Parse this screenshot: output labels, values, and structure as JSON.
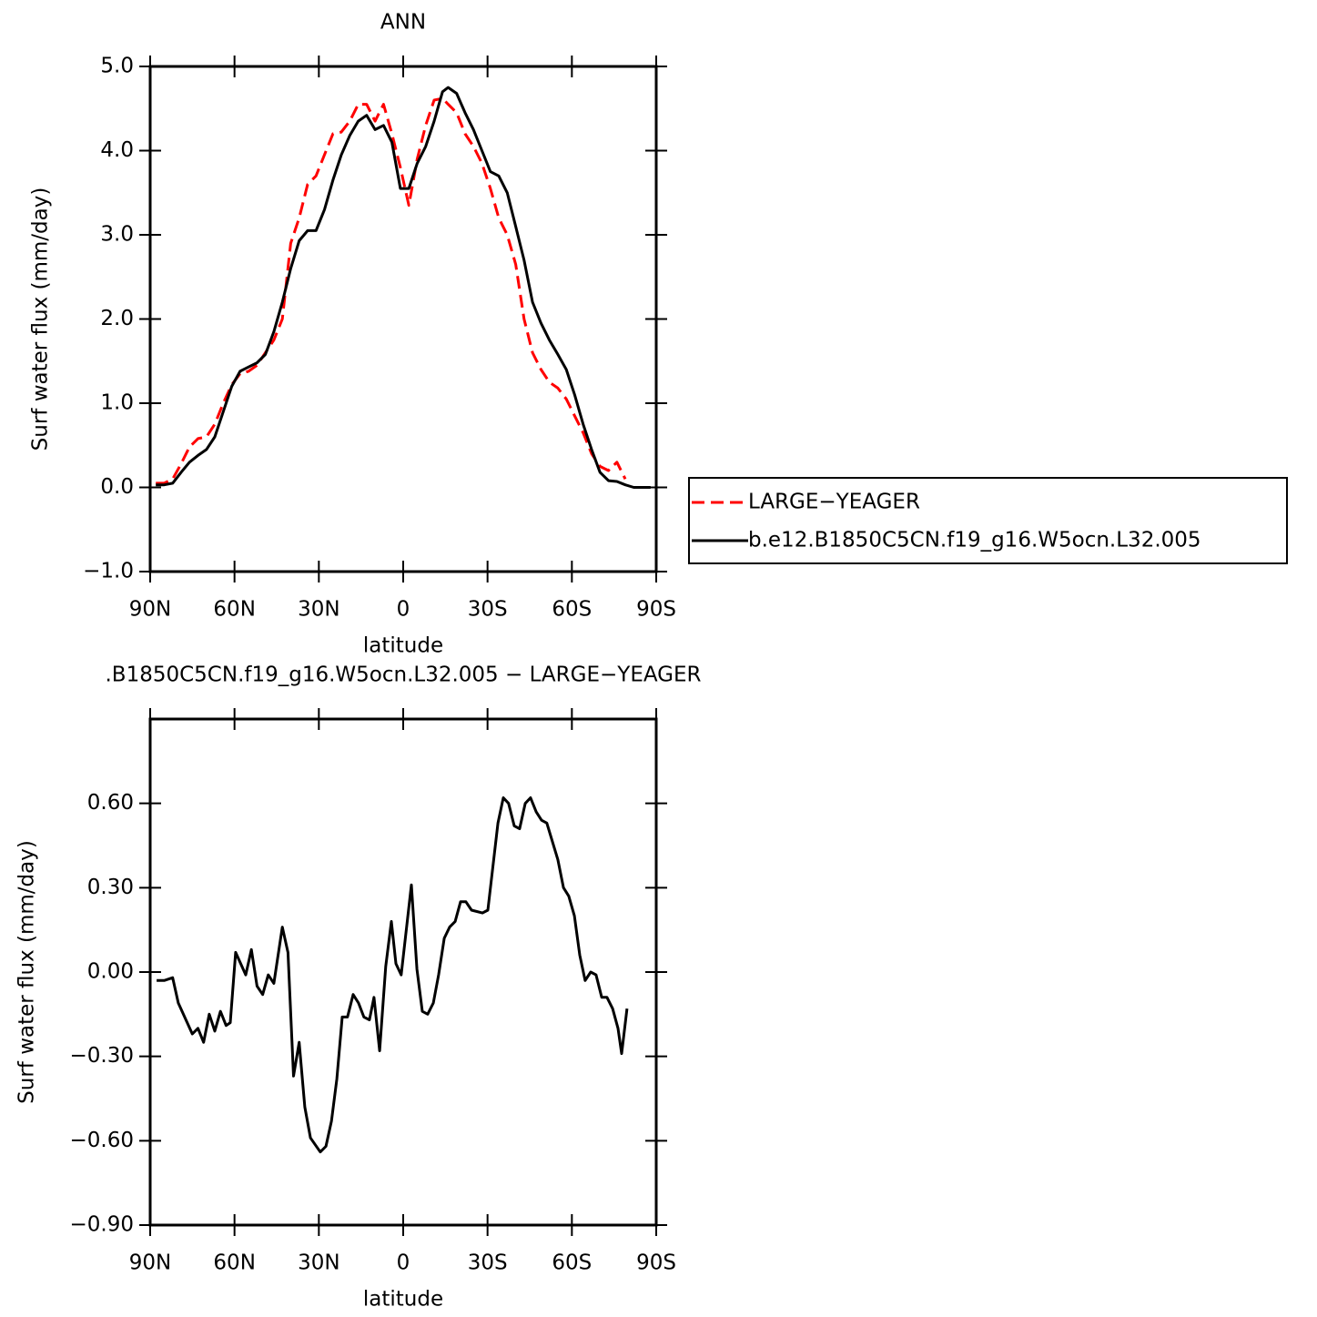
{
  "chart_data": [
    {
      "type": "line",
      "title": "ANN",
      "xlabel": "latitude",
      "ylabel": "Surf water flux (mm/day)",
      "x": [
        88,
        85,
        82,
        79,
        76,
        73,
        70,
        67,
        64,
        61,
        58,
        55,
        52,
        49,
        46,
        43,
        40,
        37,
        34,
        31,
        28,
        25,
        22,
        19,
        16,
        13,
        10,
        7,
        4,
        1,
        -2,
        -5,
        -8,
        -11,
        -14,
        -16,
        -19,
        -22,
        -25,
        -28,
        -31,
        -34,
        -37,
        -40,
        -43,
        -46,
        -49,
        -52,
        -55,
        -58,
        -61,
        -64,
        -67,
        -70,
        -73,
        -76,
        -79,
        -82,
        -85,
        -88
      ],
      "series": [
        {
          "name": "LARGE−YEAGER",
          "color": "#ff0000",
          "dashed": true,
          "values": [
            0.05,
            0.05,
            0.1,
            0.28,
            0.48,
            0.58,
            0.6,
            0.75,
            1.0,
            1.22,
            1.35,
            1.38,
            1.45,
            1.6,
            1.75,
            2.0,
            2.9,
            3.2,
            3.6,
            3.7,
            3.95,
            4.2,
            4.22,
            4.35,
            4.55,
            4.55,
            4.35,
            4.55,
            4.2,
            3.8,
            3.35,
            3.9,
            4.3,
            4.6,
            4.62,
            4.55,
            4.45,
            4.2,
            4.05,
            3.85,
            3.55,
            3.2,
            3.0,
            2.65,
            2.0,
            1.6,
            1.4,
            1.25,
            1.18,
            1.05,
            0.85,
            0.65,
            0.4,
            0.25,
            0.2,
            0.3,
            0.1,
            null,
            null,
            null
          ]
        },
        {
          "name": "b.e12.B1850C5CN.f19_g16.W5ocn.L32.005",
          "color": "#000000",
          "dashed": false,
          "values": [
            0.03,
            0.03,
            0.05,
            0.18,
            0.3,
            0.38,
            0.45,
            0.6,
            0.9,
            1.2,
            1.38,
            1.43,
            1.48,
            1.58,
            1.85,
            2.2,
            2.6,
            2.93,
            3.05,
            3.05,
            3.3,
            3.65,
            3.95,
            4.18,
            4.35,
            4.42,
            4.25,
            4.3,
            4.1,
            3.55,
            3.55,
            3.85,
            4.05,
            4.35,
            4.7,
            4.75,
            4.68,
            4.45,
            4.25,
            4.0,
            3.75,
            3.7,
            3.5,
            3.1,
            2.7,
            2.2,
            1.95,
            1.75,
            1.58,
            1.4,
            1.1,
            0.75,
            0.45,
            0.18,
            0.08,
            0.07,
            0.03,
            0.0,
            0.0,
            0.0
          ]
        }
      ],
      "xlim": [
        90,
        -90
      ],
      "xticks": [
        {
          "value": 90,
          "label": "90N"
        },
        {
          "value": 60,
          "label": "60N"
        },
        {
          "value": 30,
          "label": "30N"
        },
        0,
        {
          "value": -30,
          "label": "30S"
        },
        {
          "value": -60,
          "label": "60S"
        },
        {
          "value": -90,
          "label": "90S"
        }
      ],
      "ylim": [
        -1.0,
        5.0
      ],
      "yticks": [
        {
          "value": -1.0,
          "label": "−1.0"
        },
        {
          "value": 0.0,
          "label": "0.0"
        },
        {
          "value": 1.0,
          "label": "1.0"
        },
        {
          "value": 2.0,
          "label": "2.0"
        },
        {
          "value": 3.0,
          "label": "3.0"
        },
        {
          "value": 4.0,
          "label": "4.0"
        },
        {
          "value": 5.0,
          "label": "5.0"
        }
      ],
      "legend": "outside-right"
    },
    {
      "type": "line",
      "title": ".B1850C5CN.f19_g16.W5ocn.L32.005 − LARGE−YEAGER",
      "xlabel": "latitude",
      "ylabel": "Surf water flux (mm/day)",
      "x": [
        87.7,
        85,
        82,
        80,
        75,
        73,
        71,
        69,
        67,
        65,
        63,
        61.5,
        59.6,
        56,
        54,
        52,
        50,
        48,
        46,
        43,
        41,
        39,
        37,
        35,
        33,
        29.5,
        27.5,
        25.5,
        23.6,
        21.7,
        19.8,
        17.8,
        15.9,
        14,
        12,
        10.4,
        8.4,
        6.2,
        4.2,
        2.6,
        0.7,
        -2.9,
        -4.9,
        -6.8,
        -8.7,
        -10.7,
        -12.6,
        -14.6,
        -16.5,
        -18.5,
        -20.4,
        -22.3,
        -24.3,
        -28.2,
        -30.1,
        -33.7,
        -35.6,
        -37.5,
        -39.5,
        -41.4,
        -43.4,
        -45.3,
        -47.3,
        -49.2,
        -51.1,
        -55,
        -57,
        -58.9,
        -60.9,
        -62.8,
        -64.7,
        -66.7,
        -68.6,
        -70.6,
        -72.5,
        -74.5,
        -76.4,
        -77.7,
        -79.6
      ],
      "series": [
        {
          "color": "#000000",
          "dashed": false,
          "values": [
            -0.03,
            -0.03,
            -0.02,
            -0.11,
            -0.22,
            -0.2,
            -0.25,
            -0.15,
            -0.21,
            -0.14,
            -0.19,
            -0.18,
            0.07,
            -0.01,
            0.08,
            -0.05,
            -0.08,
            -0.01,
            -0.04,
            0.16,
            0.07,
            -0.37,
            -0.25,
            -0.48,
            -0.59,
            -0.64,
            -0.62,
            -0.53,
            -0.38,
            -0.16,
            -0.16,
            -0.08,
            -0.11,
            -0.16,
            -0.17,
            -0.09,
            -0.28,
            0.02,
            0.18,
            0.03,
            -0.01,
            0.31,
            0.01,
            -0.14,
            -0.15,
            -0.11,
            -0.01,
            0.12,
            0.16,
            0.18,
            0.25,
            0.25,
            0.22,
            0.21,
            0.22,
            0.53,
            0.62,
            0.6,
            0.52,
            0.51,
            0.6,
            0.62,
            0.57,
            0.54,
            0.53,
            0.4,
            0.3,
            0.27,
            0.2,
            0.06,
            -0.03,
            0.0,
            -0.01,
            -0.09,
            -0.09,
            -0.13,
            -0.2,
            -0.29,
            -0.13
          ]
        }
      ],
      "xlim": [
        90,
        -90
      ],
      "xticks": [
        {
          "value": 90,
          "label": "90N"
        },
        {
          "value": 60,
          "label": "60N"
        },
        {
          "value": 30,
          "label": "30N"
        },
        0,
        {
          "value": -30,
          "label": "30S"
        },
        {
          "value": -60,
          "label": "60S"
        },
        {
          "value": -90,
          "label": "90S"
        }
      ],
      "ylim": [
        -0.9,
        0.9
      ],
      "yticks": [
        {
          "value": -0.9,
          "label": "−0.90"
        },
        {
          "value": -0.6,
          "label": "−0.60"
        },
        {
          "value": -0.3,
          "label": "−0.30"
        },
        {
          "value": 0.0,
          "label": "0.00"
        },
        {
          "value": 0.3,
          "label": "0.30"
        },
        {
          "value": 0.6,
          "label": "0.60"
        }
      ]
    }
  ]
}
